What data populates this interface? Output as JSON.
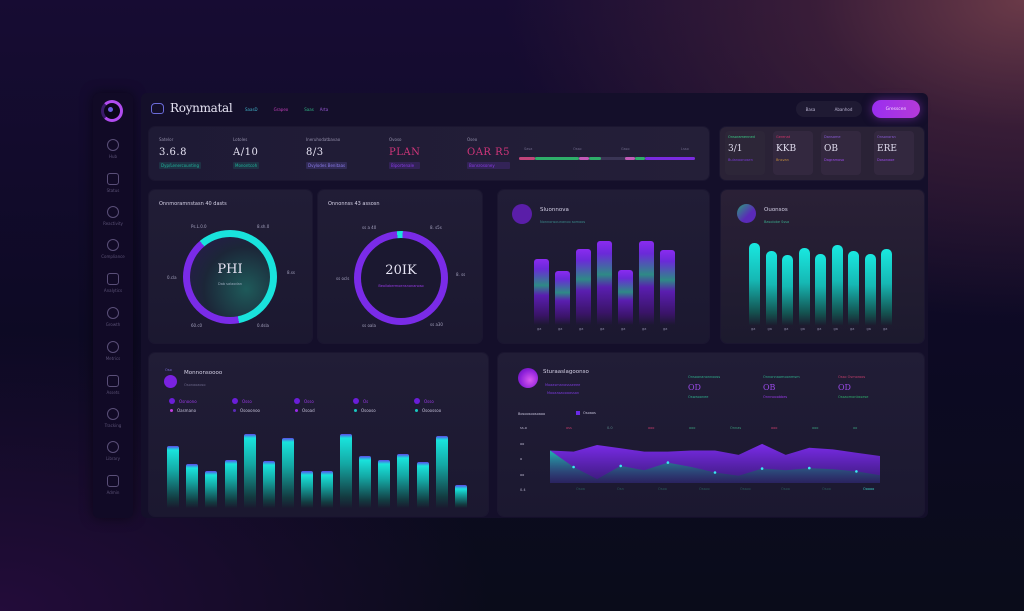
{
  "colors": {
    "accent_purple": "#8a2be2",
    "accent_cyan": "#19e3dc",
    "accent_pink": "#d0357a",
    "accent_green": "#3acb85",
    "card_bg": "#1e1a33"
  },
  "sidebar": {
    "logo": "ring-logo-icon",
    "items": [
      {
        "label": "Hub",
        "icon": "clock-icon"
      },
      {
        "label": "Status",
        "icon": "globe-icon"
      },
      {
        "label": "Reactivity",
        "icon": "puzzle-icon"
      },
      {
        "label": "Compliance",
        "icon": "font-icon"
      },
      {
        "label": "Analytics",
        "icon": "image-icon"
      },
      {
        "label": "Growth",
        "icon": "compass-icon"
      },
      {
        "label": "Metrics",
        "icon": "cloud-icon"
      },
      {
        "label": "Assets",
        "icon": "grid-icon"
      },
      {
        "label": "Tracking",
        "icon": "layout-icon"
      },
      {
        "label": "Library",
        "icon": "settings-icon"
      },
      {
        "label": "Admin",
        "icon": "record-icon"
      }
    ]
  },
  "header": {
    "brand": "Roynmatal",
    "links": [
      {
        "label": "SaasD",
        "color": "#3fb0c8"
      },
      {
        "label": "Grapeo",
        "color": "#c23db8"
      },
      {
        "label": "Saas",
        "color": "#2fb585"
      },
      {
        "label": "Arta",
        "color": "#9a5ad8"
      }
    ],
    "segment": [
      "Basa",
      "Abanhod"
    ],
    "cta": "Gresscen"
  },
  "stats": [
    {
      "key": "Satelor",
      "value": "3.6.8",
      "sub": "Dyp/Lenercounting",
      "value_color": "#e6e3f3",
      "sub_color": "#1fb39a"
    },
    {
      "key": "Lotoles",
      "value": "A/10",
      "sub": "Monontcoh",
      "value_color": "#e6e3f3",
      "sub_color": "#1fb39a"
    },
    {
      "key": "Ineruhodatbavao",
      "value": "8/3",
      "sub": "Dvylodes Benitaas",
      "value_color": "#e6e3f3",
      "sub_color": "#7a6ad8"
    },
    {
      "key": "Ovoso",
      "value": "PLAN",
      "sub": "Biportenale",
      "value_color": "#d0357a",
      "sub_color": "#7a3ad8"
    },
    {
      "key": "Oseo",
      "value": "OAR R5",
      "sub": "Bonsrosoney",
      "value_color": "#d0357a",
      "sub_color": "#7a3ad8"
    }
  ],
  "track": {
    "labels": [
      "Sasa",
      "Osso",
      "Gsso",
      "Lsso"
    ],
    "markers": [
      "09.CG",
      "86/S",
      "7/8",
      "8/5",
      "7/8",
      "Sapoor"
    ]
  },
  "tiles": [
    {
      "key": "Onsoramenned",
      "value": "3/1",
      "sub": "Bulanoonosen",
      "key_color": "#3acb85",
      "sub_color": "#7a3ad8"
    },
    {
      "key": "Gerenat",
      "value": "KKB",
      "sub": "Bnsvan",
      "key_color": "#d0356a",
      "sub_color": "#c08a3a"
    },
    {
      "key": "Dansame",
      "value": "OB",
      "sub": "Dagramoso",
      "key_color": "#8a5ad8",
      "sub_color": "#9a4ae8"
    },
    {
      "key": "Onsonorsn",
      "value": "ERE",
      "sub": "Dosonaoe",
      "key_color": "#8a5ad8",
      "sub_color": "#9a4ae8"
    }
  ],
  "donut1": {
    "title": "Onnmoramnstasn 40 dasts",
    "center": "PHI",
    "center_sub": "Dab salaodan",
    "labels": [
      "Ps.L.0.0",
      "8.sh.0",
      "8.ss",
      "0.cla",
      "60.c0",
      "0.dsla"
    ],
    "segments": [
      {
        "name": "cyan",
        "pct": 58,
        "color": "#19e3dc"
      },
      {
        "name": "purple",
        "pct": 42,
        "color": "#7a2be8"
      }
    ]
  },
  "donut2": {
    "title": "Onnonnss 43 assosn",
    "center": "20IK",
    "center_sub": "Beollabermoensnonanoso",
    "labels": [
      "ss a 40",
      "8. s5s",
      "8. ss",
      "ss ocls",
      "ss oala",
      "ss a30"
    ],
    "segments": [
      {
        "name": "purple",
        "pct": 98,
        "color": "#7a2be8"
      },
      {
        "name": "cyan",
        "pct": 2,
        "color": "#19e3dc"
      }
    ]
  },
  "bars_purple": {
    "title": "Sluonnova",
    "subtitle": "Nonnonsounanoo somoos",
    "x_labels": [
      "ga",
      "ga",
      "ga",
      "ga",
      "ga",
      "ga",
      "ga"
    ]
  },
  "bars_cyan": {
    "title": "Ouonsos",
    "subtitle": "Basolobe Sssa",
    "x_labels": [
      "ga",
      "ga",
      "ga",
      "ga",
      "ga",
      "ga",
      "ga",
      "ga",
      "ga"
    ]
  },
  "bars_wide": {
    "title": "Monnonsoooo",
    "tag": "Oso",
    "subtitle": "Osonaoaoso",
    "legend_top": [
      "Osnoono",
      "Osso",
      "Osso",
      "Os",
      "Osso"
    ],
    "legend_bottom": [
      "Oasmano",
      "Osooonoo",
      "Osoad",
      "Osooso",
      "Osoossoo"
    ]
  },
  "area_card": {
    "title": "Sturaaslagoonso",
    "subtitle1": "Moaasmanassseeee",
    "subtitle2": "Mooaasaooaassan",
    "kpis": [
      {
        "label": "Onsoonanonnooss",
        "value": "OD",
        "sub": "Oswaoonee"
      },
      {
        "label": "Onnonnaomoonmsm",
        "value": "OB",
        "sub": "Onnnooobbes"
      },
      {
        "label": "Osso Osmoroos",
        "value": "OD",
        "sub": "Ossaomonbssese"
      }
    ],
    "legend_label": "Bosoosoosoaoo",
    "legend_series": "Osoaos",
    "y_labels": [
      "ss.o",
      "oo",
      "o",
      "oo",
      "0.4"
    ],
    "top_labels": [
      "oss",
      "0.0",
      "ooo",
      "ooo",
      "Onnas",
      "ooo",
      "ooo",
      "oo"
    ],
    "x_labels": [
      "Osoa",
      "Osn",
      "Osoo",
      "Ossoo",
      "Ossoo",
      "Osoo",
      "Osoo",
      "Ooooo"
    ]
  },
  "chart_data": [
    {
      "type": "pie",
      "title": "Onnmoramnstasn 40 dasts",
      "categories": [
        "cyan",
        "purple"
      ],
      "values": [
        58,
        42
      ]
    },
    {
      "type": "pie",
      "title": "Onnonnss 43 assosn",
      "categories": [
        "purple",
        "cyan"
      ],
      "values": [
        98,
        2
      ]
    },
    {
      "type": "bar",
      "title": "Sluonnova",
      "categories": [
        "1",
        "2",
        "3",
        "4",
        "5",
        "6",
        "7"
      ],
      "values": [
        66,
        54,
        76,
        84,
        55,
        84,
        75
      ],
      "ylim": [
        0,
        100
      ]
    },
    {
      "type": "bar",
      "title": "Ouonsos",
      "categories": [
        "1",
        "2",
        "3",
        "4",
        "5",
        "6",
        "7",
        "8",
        "9"
      ],
      "values": [
        82,
        74,
        70,
        77,
        71,
        80,
        74,
        71,
        76
      ],
      "ylim": [
        0,
        100
      ]
    },
    {
      "type": "bar",
      "title": "Monnonsoooo",
      "categories": [
        "1",
        "2",
        "3",
        "4",
        "5",
        "6",
        "7",
        "8",
        "9",
        "10",
        "11",
        "12",
        "13",
        "14",
        "15",
        "16"
      ],
      "values": [
        62,
        44,
        37,
        48,
        74,
        47,
        70,
        37,
        37,
        74,
        52,
        48,
        54,
        46,
        72,
        23
      ],
      "ylim": [
        0,
        80
      ]
    },
    {
      "type": "area",
      "title": "Sturaaslagoonso",
      "x": [
        0,
        1,
        2,
        3,
        4,
        5,
        6,
        7,
        8,
        9,
        10,
        11,
        12,
        13,
        14
      ],
      "series": [
        {
          "name": "purple",
          "values": [
            70,
            68,
            80,
            74,
            68,
            68,
            70,
            70,
            62,
            82,
            62,
            75,
            72,
            66,
            60
          ]
        },
        {
          "name": "cyan",
          "values": [
            70,
            40,
            18,
            42,
            34,
            48,
            40,
            30,
            24,
            37,
            34,
            38,
            36,
            32,
            25
          ]
        }
      ],
      "ylim": [
        0,
        100
      ]
    }
  ]
}
